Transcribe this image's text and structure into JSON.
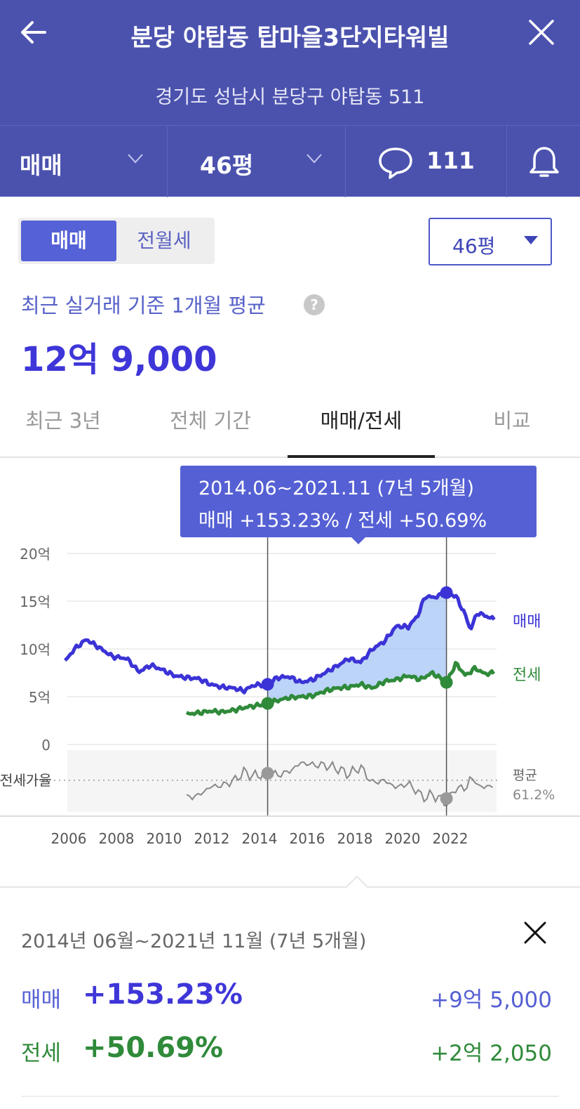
{
  "header": {
    "title": "분당 야탑동 탑마을3단지타워빌",
    "address": "경기도 성남시 분당구 야탑동 511",
    "trade_type": "매매",
    "size": "46평",
    "comment_count": "111"
  },
  "controls": {
    "toggle": [
      "매매",
      "전월세"
    ],
    "size_dropdown": "46평"
  },
  "summary": {
    "label": "최근 실거래 기준 1개월 평균",
    "help": "?",
    "value": "12억 9,000"
  },
  "tabs": [
    "최근 3년",
    "전체 기간",
    "매매/전세",
    "비교"
  ],
  "tooltip": {
    "line1": "2014.06~2021.11 (7년 5개월)",
    "line2": "매매 +153.23%  /  전세 +50.69%"
  },
  "chart_data": {
    "type": "line",
    "y_ticks": [
      "20억",
      "15억",
      "10억",
      "5억",
      "0"
    ],
    "ylim": [
      0,
      20
    ],
    "x_ticks": [
      "2006",
      "2008",
      "2010",
      "2012",
      "2014",
      "2016",
      "2018",
      "2020",
      "2022"
    ],
    "series": [
      {
        "name": "매매",
        "color": "#3b33d6",
        "x": [
          2005.9,
          2006.3,
          2006.8,
          2007.3,
          2007.9,
          2008.5,
          2009.0,
          2009.5,
          2010.0,
          2010.5,
          2011.0,
          2011.5,
          2012.0,
          2012.5,
          2013.0,
          2013.4,
          2013.8,
          2014.4,
          2014.8,
          2015.3,
          2015.8,
          2016.3,
          2016.8,
          2017.3,
          2017.8,
          2018.3,
          2018.8,
          2019.3,
          2019.8,
          2020.3,
          2020.7,
          2021.0,
          2021.4,
          2021.9,
          2022.3,
          2022.7,
          2022.9,
          2023.2,
          2023.5,
          2023.9
        ],
        "values": [
          8.7,
          10.0,
          11.0,
          10.2,
          9.2,
          9.0,
          7.6,
          8.3,
          7.8,
          7.2,
          7.0,
          6.9,
          6.3,
          6.0,
          5.9,
          5.6,
          6.2,
          6.3,
          7.0,
          7.1,
          6.5,
          6.8,
          7.5,
          8.2,
          9.0,
          8.6,
          10.0,
          10.8,
          12.4,
          12.3,
          13.5,
          15.5,
          15.4,
          15.9,
          15.5,
          13.5,
          12.0,
          13.8,
          13.5,
          13.1
        ]
      },
      {
        "name": "전세",
        "color": "#2f8a3a",
        "x": [
          2011.0,
          2011.5,
          2012.0,
          2012.5,
          2013.0,
          2013.5,
          2014.0,
          2014.4,
          2014.8,
          2015.3,
          2015.8,
          2016.3,
          2016.8,
          2017.3,
          2017.8,
          2018.3,
          2018.8,
          2019.3,
          2019.8,
          2020.3,
          2020.8,
          2021.3,
          2021.9,
          2022.3,
          2022.7,
          2023.1,
          2023.5,
          2023.9
        ],
        "values": [
          3.2,
          3.3,
          3.5,
          3.4,
          3.6,
          3.9,
          4.1,
          4.3,
          4.6,
          4.9,
          5.0,
          5.1,
          5.6,
          5.9,
          6.0,
          6.3,
          5.9,
          6.6,
          6.8,
          7.2,
          6.8,
          7.5,
          6.5,
          8.5,
          7.2,
          8.0,
          7.4,
          7.5
        ]
      }
    ],
    "labels": {
      "sale": "매매",
      "jeonse": "전세"
    },
    "ratio_panel": {
      "label": "전세가율",
      "avg_label": "평균",
      "avg_value": "61.2%"
    },
    "selection": {
      "start": 2014.4,
      "end": 2021.9
    }
  },
  "result": {
    "period": "2014년 06월~2021년 11월 (7년 5개월)",
    "rows": [
      {
        "label": "매매",
        "pct": "+153.23%",
        "amount": "+9억 5,000"
      },
      {
        "label": "전세",
        "pct": "+50.69%",
        "amount": "+2억 2,050"
      }
    ]
  }
}
